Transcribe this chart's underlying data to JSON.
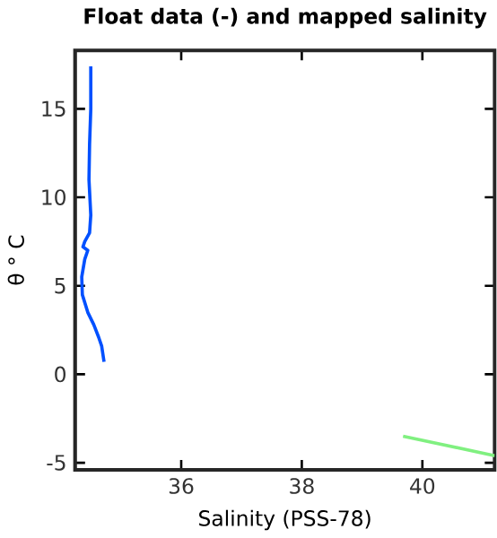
{
  "chart_data": {
    "type": "line",
    "title": "Float data (-) and mapped salinity",
    "xlabel": "Salinity (PSS-78)",
    "ylabel": "θ ° C",
    "xlim": [
      34.24,
      41.2
    ],
    "ylim": [
      -5.4,
      18.3
    ],
    "xticks": [
      36,
      38,
      40
    ],
    "yticks": [
      -5,
      0,
      5,
      10,
      15
    ],
    "grid": false,
    "series": [
      {
        "color": "#0050ff",
        "x": [
          34.5,
          34.5,
          34.48,
          34.47,
          34.5,
          34.48,
          34.4,
          34.37,
          34.45,
          34.4,
          34.35,
          34.36,
          34.45,
          34.55,
          34.63,
          34.68,
          34.72
        ],
        "values": [
          17.4,
          15,
          13,
          11,
          9,
          8,
          7.5,
          7.2,
          7.0,
          6.5,
          5.5,
          4.5,
          3.5,
          2.8,
          2.1,
          1.6,
          0.7
        ]
      },
      {
        "color": "#80f080",
        "x": [
          39.68,
          41.2
        ],
        "values": [
          -3.5,
          -4.6
        ]
      }
    ]
  }
}
